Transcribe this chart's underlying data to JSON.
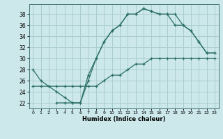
{
  "title": "",
  "xlabel": "Humidex (Indice chaleur)",
  "bg_color": "#cce8ea",
  "grid_color": "#aacdd0",
  "line_color": "#2a6e64",
  "xlim": [
    -0.5,
    23.5
  ],
  "ylim": [
    21.0,
    39.8
  ],
  "xticks": [
    0,
    1,
    2,
    3,
    4,
    5,
    6,
    7,
    8,
    9,
    10,
    11,
    12,
    13,
    14,
    15,
    16,
    17,
    18,
    19,
    20,
    21,
    22,
    23
  ],
  "yticks": [
    22,
    24,
    26,
    28,
    30,
    32,
    34,
    36,
    38
  ],
  "line1_x": [
    0,
    1,
    2,
    3,
    4,
    5,
    6,
    7,
    8,
    9,
    10,
    11,
    12,
    13,
    14,
    15,
    16,
    17,
    18,
    19,
    20,
    21,
    22,
    23
  ],
  "line1_y": [
    28,
    26,
    25,
    24,
    23,
    22,
    22,
    27,
    30,
    33,
    35,
    36,
    38,
    38,
    39,
    38.5,
    38,
    38,
    38,
    36,
    35,
    33,
    31,
    31
  ],
  "line2_x": [
    0,
    1,
    2,
    3,
    4,
    5,
    6,
    7,
    8,
    9,
    10,
    11,
    12,
    13,
    14,
    15,
    16,
    17,
    18,
    19,
    20,
    21,
    22,
    23
  ],
  "line2_y": [
    25,
    25,
    25,
    25,
    25,
    25,
    25,
    25,
    25,
    26,
    27,
    27,
    28,
    29,
    29,
    30,
    30,
    30,
    30,
    30,
    30,
    30,
    30,
    30
  ],
  "line3_x": [
    3,
    4,
    5,
    6,
    7,
    8,
    9,
    10,
    11,
    12,
    13,
    14,
    15,
    16,
    17,
    18,
    19,
    20,
    21,
    22,
    23
  ],
  "line3_y": [
    22,
    22,
    22,
    22,
    26,
    30,
    33,
    35,
    36,
    38,
    38,
    39,
    38.5,
    38,
    38,
    36,
    36,
    35,
    33,
    31,
    31
  ]
}
